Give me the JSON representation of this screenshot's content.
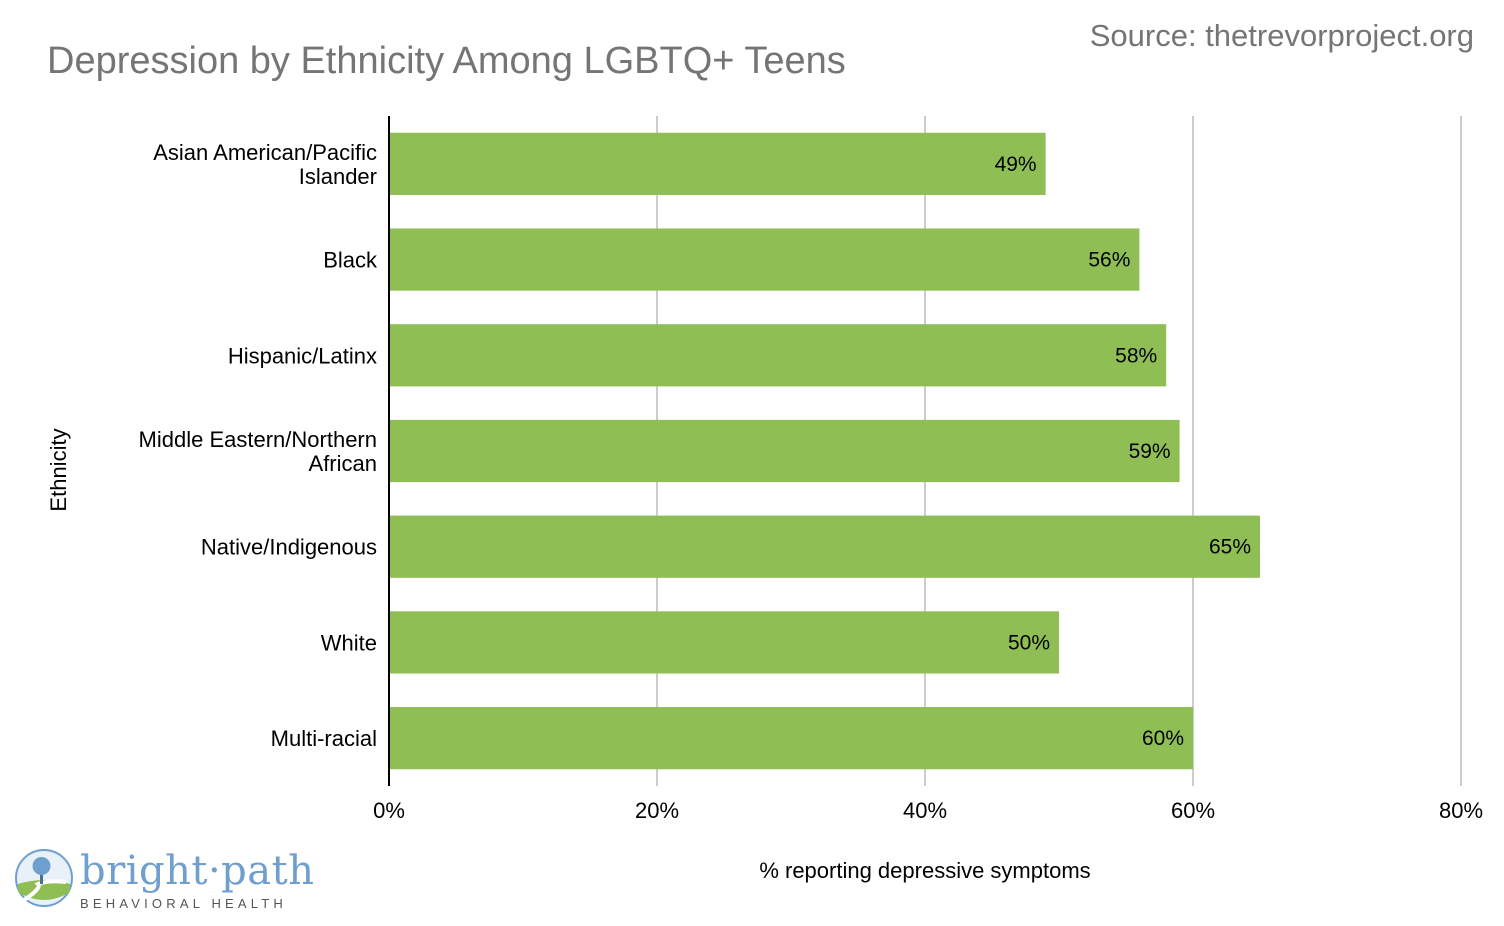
{
  "title": "Depression by Ethnicity Among LGBTQ+ Teens",
  "source": "Source: thetrevorproject.org",
  "logo": {
    "name": "bright·path",
    "subtitle": "BEHAVIORAL HEALTH"
  },
  "colors": {
    "bar": "#8fbf54",
    "grid": "#cccccc",
    "axis": "#000000",
    "title": "#757575"
  },
  "chart_data": {
    "type": "bar",
    "orientation": "horizontal",
    "categories": [
      [
        "Asian American/Pacific",
        "Islander"
      ],
      [
        "Black"
      ],
      [
        "Hispanic/Latinx"
      ],
      [
        "Middle Eastern/Northern",
        "African"
      ],
      [
        "Native/Indigenous"
      ],
      [
        "White"
      ],
      [
        "Multi-racial"
      ]
    ],
    "values": [
      49,
      56,
      58,
      59,
      65,
      50,
      60
    ],
    "data_labels": [
      "49%",
      "56%",
      "58%",
      "59%",
      "65%",
      "50%",
      "60%"
    ],
    "xlim": [
      0,
      80
    ],
    "xticks": [
      0,
      20,
      40,
      60,
      80
    ],
    "xtick_labels": [
      "0%",
      "20%",
      "40%",
      "60%",
      "80%"
    ],
    "xlabel": "% reporting depressive symptoms",
    "ylabel": "Ethnicity",
    "grid": true
  }
}
